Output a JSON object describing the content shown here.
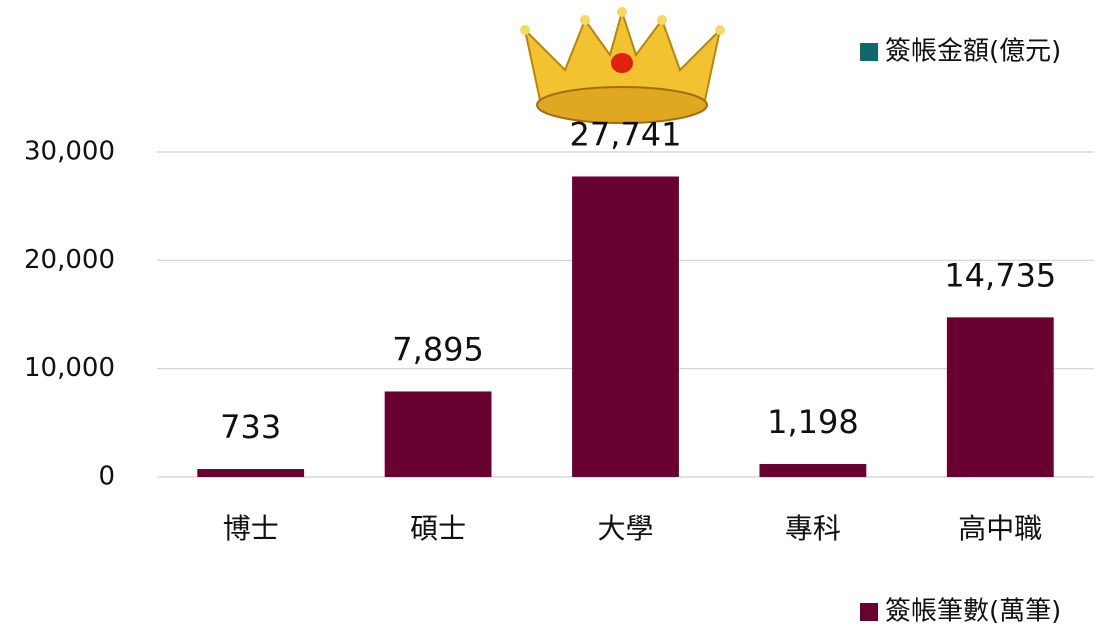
{
  "chart_data": {
    "type": "bar",
    "categories": [
      "博士",
      "碩士",
      "大學",
      "專科",
      "高中職"
    ],
    "series": [
      {
        "name": "簽帳筆數(萬筆)",
        "color": "#680030",
        "values": [
          733,
          7895,
          27741,
          1198,
          14735
        ],
        "value_labels": [
          "733",
          "7,895",
          "27,741",
          "1,198",
          "14,735"
        ]
      },
      {
        "name": "簽帳金額(億元)",
        "color": "#106868",
        "values": [
          null,
          null,
          null,
          null,
          null
        ]
      }
    ],
    "ylim": [
      0,
      30000
    ],
    "yticks": [
      0,
      {
        "value": 10000,
        "label": "10,000"
      },
      {
        "value": 20000,
        "label": "20,000"
      },
      {
        "value": 30000,
        "label": "30,000"
      }
    ],
    "grid": true
  }
}
